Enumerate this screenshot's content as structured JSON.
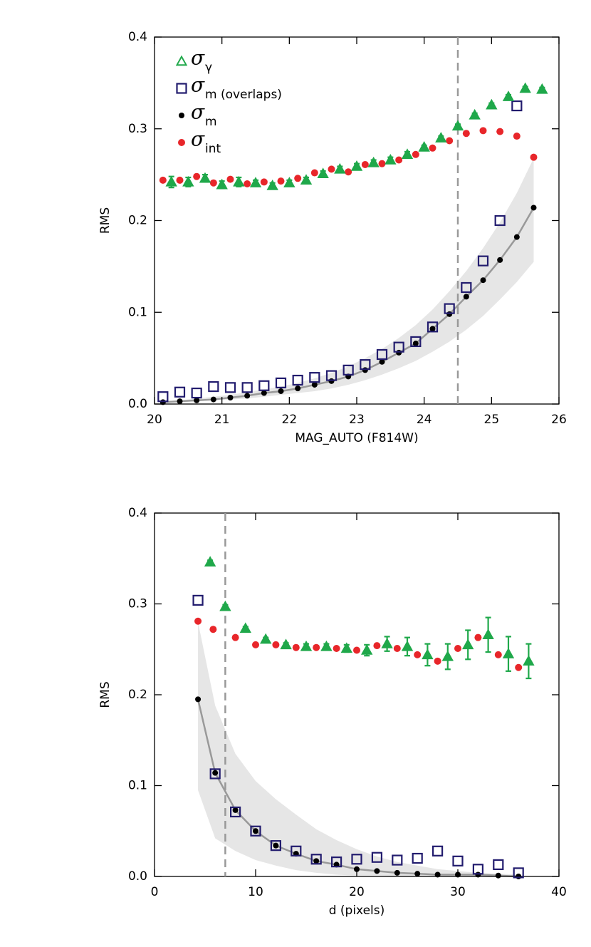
{
  "chart_data": [
    {
      "type": "scatter",
      "xlabel": "MAG_AUTO (F814W)",
      "ylabel": "RMS",
      "xlim": [
        20,
        26
      ],
      "ylim": [
        0,
        0.4
      ],
      "xticks": [
        20,
        21,
        22,
        23,
        24,
        25,
        26
      ],
      "yticks": [
        {
          "value": 0,
          "label": "0.0"
        },
        0.1,
        0.2,
        0.3,
        0.4
      ],
      "vline": 24.5,
      "vline_color": "#999999",
      "legend": "upper left",
      "series": [
        {
          "name": "σ",
          "subscript": "γ",
          "marker": "triangle",
          "color": "#1fa84a",
          "x": [
            20.25,
            20.5,
            20.75,
            21.0,
            21.25,
            21.5,
            21.75,
            22.0,
            22.25,
            22.5,
            22.75,
            23.0,
            23.25,
            23.5,
            23.75,
            24.0,
            24.25,
            24.5,
            24.75,
            25.0,
            25.25,
            25.5,
            25.75
          ],
          "values": [
            0.242,
            0.242,
            0.246,
            0.239,
            0.242,
            0.241,
            0.238,
            0.241,
            0.244,
            0.251,
            0.256,
            0.259,
            0.263,
            0.266,
            0.272,
            0.28,
            0.29,
            0.303,
            0.315,
            0.326,
            0.335,
            0.344,
            0.343
          ],
          "errors": [
            0.006,
            0.005,
            0.004,
            0.004,
            0.005,
            0.003,
            0.003,
            0.003,
            0.003,
            0.003,
            0.003,
            0.003,
            0.003,
            0.003,
            0.003,
            0.002,
            0.002,
            0.002,
            0.002,
            0.002,
            0.002,
            0.002,
            0.002
          ]
        },
        {
          "name": "σ",
          "subscript": "m (overlaps)",
          "marker": "square",
          "color": "#221c6e",
          "x": [
            20.125,
            20.375,
            20.625,
            20.875,
            21.125,
            21.375,
            21.625,
            21.875,
            22.125,
            22.375,
            22.625,
            22.875,
            23.125,
            23.375,
            23.625,
            23.875,
            24.125,
            24.375,
            24.625,
            24.875,
            25.125,
            25.375,
            25.625
          ],
          "values": [
            0.008,
            0.013,
            0.012,
            0.019,
            0.018,
            0.018,
            0.02,
            0.023,
            0.026,
            0.029,
            0.031,
            0.037,
            0.043,
            0.054,
            0.062,
            0.068,
            0.084,
            0.104,
            0.127,
            0.156,
            0.2,
            0.325,
            null
          ]
        },
        {
          "name": "σ",
          "subscript": "m",
          "marker": "dot",
          "color": "#000000",
          "line_color": "#999999",
          "band_color": "#e6e6e6",
          "x": [
            20.125,
            20.375,
            20.625,
            20.875,
            21.125,
            21.375,
            21.625,
            21.875,
            22.125,
            22.375,
            22.625,
            22.875,
            23.125,
            23.375,
            23.625,
            23.875,
            24.125,
            24.375,
            24.625,
            24.875,
            25.125,
            25.375,
            25.625
          ],
          "values": [
            0.002,
            0.003,
            0.004,
            0.005,
            0.007,
            0.009,
            0.012,
            0.014,
            0.017,
            0.021,
            0.025,
            0.03,
            0.037,
            0.046,
            0.056,
            0.066,
            0.082,
            0.098,
            0.117,
            0.135,
            0.157,
            0.182,
            0.214
          ],
          "band_low": [
            0.001,
            0.002,
            0.003,
            0.004,
            0.005,
            0.006,
            0.008,
            0.01,
            0.012,
            0.014,
            0.017,
            0.021,
            0.026,
            0.032,
            0.039,
            0.047,
            0.057,
            0.068,
            0.081,
            0.096,
            0.114,
            0.133,
            0.155
          ],
          "band_high": [
            0.003,
            0.004,
            0.006,
            0.008,
            0.01,
            0.013,
            0.016,
            0.019,
            0.023,
            0.028,
            0.034,
            0.041,
            0.05,
            0.06,
            0.072,
            0.086,
            0.103,
            0.123,
            0.145,
            0.17,
            0.198,
            0.23,
            0.268
          ]
        },
        {
          "name": "σ",
          "subscript": "int",
          "marker": "circle",
          "color": "#e8262a",
          "x": [
            20.125,
            20.375,
            20.625,
            20.875,
            21.125,
            21.375,
            21.625,
            21.875,
            22.125,
            22.375,
            22.625,
            22.875,
            23.125,
            23.375,
            23.625,
            23.875,
            24.125,
            24.375,
            24.625,
            24.875,
            25.125,
            25.375,
            25.625
          ],
          "values": [
            0.244,
            0.244,
            0.248,
            0.241,
            0.245,
            0.24,
            0.242,
            0.243,
            0.246,
            0.252,
            0.256,
            0.253,
            0.261,
            0.262,
            0.266,
            0.272,
            0.279,
            0.287,
            0.295,
            0.298,
            0.297,
            0.292,
            0.269
          ]
        }
      ]
    },
    {
      "type": "scatter",
      "xlabel": "d (pixels)",
      "ylabel": "RMS",
      "xlim": [
        0,
        40
      ],
      "ylim": [
        0,
        0.4
      ],
      "xticks": [
        0,
        10,
        20,
        30,
        40
      ],
      "yticks": [
        {
          "value": 0,
          "label": "0.0"
        },
        0.1,
        0.2,
        0.3,
        0.4
      ],
      "vline": 7,
      "vline_color": "#999999",
      "series": [
        {
          "marker": "triangle",
          "color": "#1fa84a",
          "x": [
            5.5,
            7,
            9,
            11,
            13,
            15,
            17,
            19,
            21,
            23,
            25,
            27,
            29,
            31,
            33,
            35,
            37
          ],
          "values": [
            0.346,
            0.297,
            0.273,
            0.261,
            0.255,
            0.253,
            0.253,
            0.251,
            0.249,
            0.256,
            0.253,
            0.244,
            0.242,
            0.255,
            0.266,
            0.245,
            0.237
          ],
          "errors": [
            0.002,
            0.002,
            0.002,
            0.002,
            0.002,
            0.003,
            0.003,
            0.004,
            0.006,
            0.008,
            0.01,
            0.012,
            0.014,
            0.016,
            0.019,
            0.019,
            0.019
          ]
        },
        {
          "marker": "square",
          "color": "#221c6e",
          "x": [
            4.3,
            6,
            8,
            10,
            12,
            14,
            16,
            18,
            20,
            22,
            24,
            26,
            28,
            30,
            32,
            34,
            36
          ],
          "values": [
            0.304,
            0.113,
            0.071,
            0.05,
            0.034,
            0.028,
            0.019,
            0.016,
            0.019,
            0.021,
            0.018,
            0.02,
            0.028,
            0.017,
            0.008,
            0.013,
            0.004
          ]
        },
        {
          "marker": "dot",
          "color": "#000000",
          "line_color": "#999999",
          "band_color": "#e6e6e6",
          "x": [
            4.3,
            6,
            8,
            10,
            12,
            14,
            16,
            18,
            20,
            22,
            24,
            26,
            28,
            30,
            32,
            34,
            36
          ],
          "values": [
            0.195,
            0.114,
            0.073,
            0.05,
            0.034,
            0.025,
            0.017,
            0.013,
            0.008,
            0.006,
            0.004,
            0.003,
            0.002,
            0.002,
            0.002,
            0.001,
            0
          ],
          "band_low": [
            0.095,
            0.042,
            0.028,
            0.018,
            0.012,
            0.007,
            0.004,
            0.002,
            0.001,
            0.001,
            0,
            0,
            0,
            0,
            0,
            0,
            0
          ],
          "band_high": [
            0.28,
            0.188,
            0.135,
            0.105,
            0.085,
            0.068,
            0.052,
            0.04,
            0.03,
            0.022,
            0.016,
            0.012,
            0.008,
            0.006,
            0.004,
            0.003,
            0.002
          ]
        },
        {
          "marker": "circle",
          "color": "#e8262a",
          "x": [
            4.3,
            5.8,
            8,
            10,
            12,
            14,
            16,
            18,
            20,
            22,
            24,
            26,
            28,
            30,
            32,
            34,
            36
          ],
          "values": [
            0.281,
            0.272,
            0.263,
            0.255,
            0.255,
            0.252,
            0.252,
            0.251,
            0.249,
            0.254,
            0.251,
            0.244,
            0.237,
            0.251,
            0.263,
            0.244,
            0.23
          ]
        }
      ]
    }
  ]
}
